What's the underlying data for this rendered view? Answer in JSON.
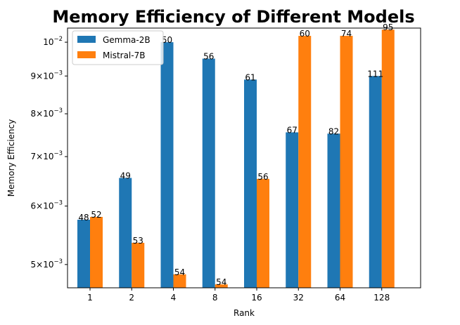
{
  "chart_data": {
    "type": "bar",
    "title": "Memory Efficiency of Different Models",
    "xlabel": "Rank",
    "ylabel": "Memory Efficiency",
    "yscale": "log",
    "ylim": [
      0.00465,
      0.01045
    ],
    "categories": [
      "1",
      "2",
      "4",
      "8",
      "16",
      "32",
      "64",
      "128"
    ],
    "series": [
      {
        "name": "Gemma-2B",
        "color": "#1f77b4",
        "values": [
          0.00575,
          0.00655,
          0.01,
          0.0095,
          0.0089,
          0.00755,
          0.00752,
          0.009
        ],
        "labels": [
          "48",
          "49",
          "50",
          "56",
          "61",
          "67",
          "82",
          "111"
        ]
      },
      {
        "name": "Mistral-7B",
        "color": "#ff7f0e",
        "values": [
          0.0058,
          0.00535,
          0.00485,
          0.0047,
          0.00653,
          0.0102,
          0.0102,
          0.0104
        ],
        "labels": [
          "52",
          "53",
          "54",
          "54",
          "56",
          "60",
          "74",
          "95"
        ]
      }
    ],
    "yticks": [
      {
        "value": 0.005,
        "mantissa": "5",
        "exp": "−3"
      },
      {
        "value": 0.006,
        "mantissa": "6",
        "exp": "−3"
      },
      {
        "value": 0.007,
        "mantissa": "7",
        "exp": "−3"
      },
      {
        "value": 0.008,
        "mantissa": "8",
        "exp": "−3"
      },
      {
        "value": 0.009,
        "mantissa": "9",
        "exp": "−3"
      },
      {
        "value": 0.01,
        "mantissa": "",
        "exp": "−2"
      }
    ],
    "legend_position": "top-left",
    "grid": false
  }
}
